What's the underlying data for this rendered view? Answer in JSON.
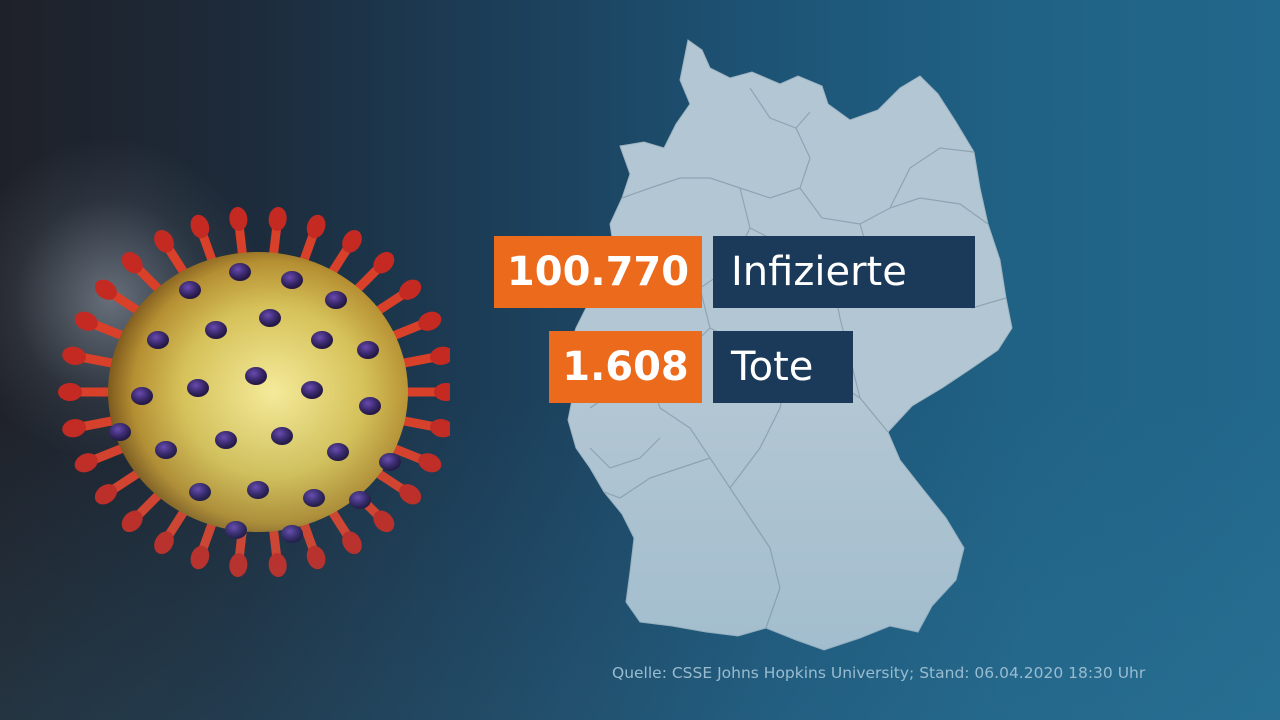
{
  "stats": {
    "infected": {
      "value": "100.770",
      "label": "Infizierte"
    },
    "deaths": {
      "value": "1.608",
      "label": "Tote"
    }
  },
  "source": "Quelle: CSSE Johns Hopkins University; Stand: 06.04.2020 18:30 Uhr",
  "colors": {
    "number_box": "#ec6a1c",
    "label_box": "#1b3a5a",
    "map_fill": "#b3c6d3",
    "background_left": "#1f2129",
    "background_right": "#22688c"
  },
  "icons": [
    "coronavirus-illustration",
    "germany-map"
  ]
}
